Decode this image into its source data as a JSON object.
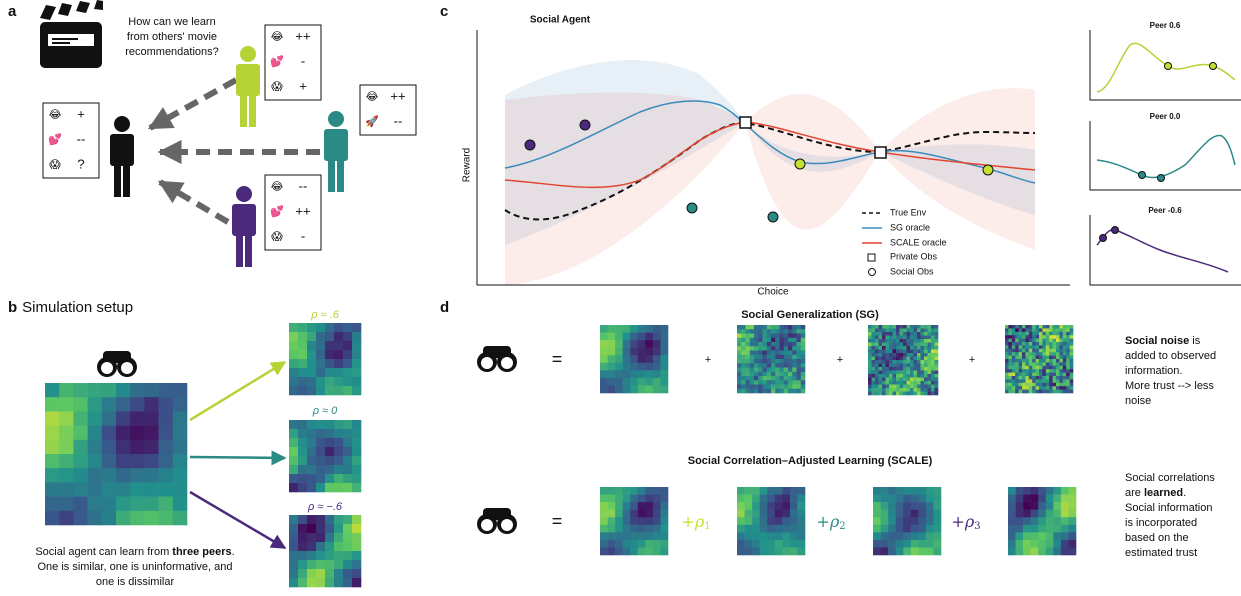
{
  "panel_a": {
    "label": "a",
    "question": [
      "How can we learn",
      "from others' movie",
      "recommendations?"
    ],
    "cards": [
      {
        "rows": [
          {
            "icon": "😂",
            "rating": "+"
          },
          {
            "icon": "💕",
            "rating": "--"
          },
          {
            "icon": "😱",
            "rating": "?"
          }
        ]
      },
      {
        "rows": [
          {
            "icon": "😂",
            "rating": "++"
          },
          {
            "icon": "💕",
            "rating": "-"
          },
          {
            "icon": "😱",
            "rating": "+"
          }
        ]
      },
      {
        "rows": [
          {
            "icon": "😂",
            "rating": "++"
          },
          {
            "icon": "🚀",
            "rating": "--"
          }
        ]
      },
      {
        "rows": [
          {
            "icon": "😂",
            "rating": "--"
          },
          {
            "icon": "💕",
            "rating": "++"
          },
          {
            "icon": "😱",
            "rating": "-"
          }
        ]
      }
    ]
  },
  "panel_b": {
    "label": "b",
    "title": "Simulation setup",
    "peer_labels": [
      "ρ ≈ .6",
      "ρ ≈ 0",
      "ρ ≈ −.6"
    ],
    "caption": [
      [
        {
          "text": "Social agent can learn from "
        },
        {
          "text": "three peers",
          "bold": true
        },
        {
          "text": "."
        }
      ],
      "One is similar, one is uninformative, and",
      "one is dissimilar"
    ]
  },
  "panel_c": {
    "label": "c",
    "title": "Social Agent",
    "y_label": "Reward",
    "x_label": "Choice",
    "legend": [
      "True Env",
      "SG oracle",
      "SCALE oracle",
      "Private Obs",
      "Social Obs"
    ],
    "peer_titles": [
      "Peer 0.6",
      "Peer 0.0",
      "Peer -0.6"
    ]
  },
  "panel_d": {
    "label": "d",
    "sg": {
      "title": "Social Generalization (SG)",
      "equals": "=",
      "plus": [
        "+",
        "+",
        "+"
      ],
      "note": [
        [
          {
            "text": "Social noise",
            "bold": true
          },
          {
            "text": " is"
          }
        ],
        "added to observed",
        "information.",
        "More trust --> less",
        "noise"
      ]
    },
    "scale": {
      "title": "Social Correlation–Adjusted Learning (SCALE)",
      "equals": "=",
      "weights": [
        {
          "plus": "+",
          "symbol": "ρ",
          "sub": "1"
        },
        {
          "plus": "+",
          "symbol": "ρ",
          "sub": "2"
        },
        {
          "plus": "+",
          "symbol": "ρ",
          "sub": "3"
        }
      ],
      "note": [
        "Social correlations",
        [
          {
            "text": "are "
          },
          {
            "text": "learned",
            "bold": true
          },
          {
            "text": "."
          }
        ],
        "Social information",
        "is incorporated",
        "based on the",
        "estimated trust"
      ]
    }
  }
}
